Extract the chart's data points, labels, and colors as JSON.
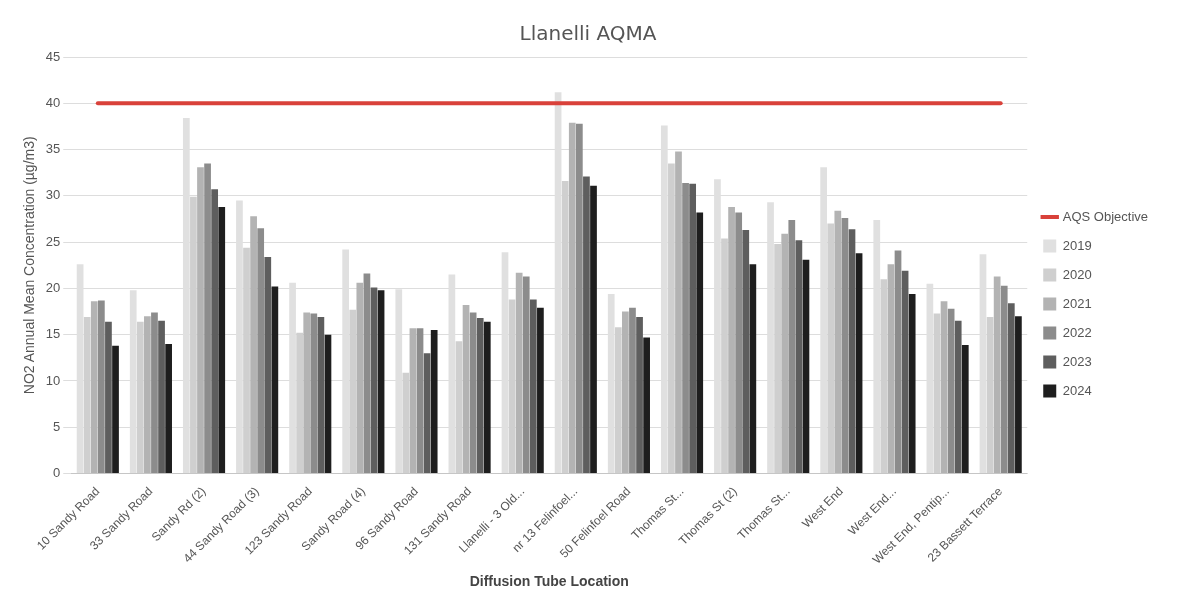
{
  "chart_data": {
    "type": "bar",
    "title": "Llanelli AQMA",
    "xlabel": "Diffusion Tube Location",
    "ylabel": "NO2 Annual Mean Concentration (µg/m3)",
    "categories": [
      "10 Sandy Road",
      "33 Sandy Road",
      "Sandy Rd (2)",
      "44 Sandy Road (3)",
      "123 Sandy Road",
      "Sandy Road (4)",
      "96 Sandy Road",
      "131 Sandy Road",
      "Llanelli - 3 Old...",
      "nr 13 Felinfoel...",
      "50 Felinfoel Road",
      "Thomas St...",
      "Thomas St (2)",
      "Thomas St...",
      "West End",
      "West End...",
      "West End, Pentip...",
      "23 Bassett Terrace"
    ],
    "series": [
      {
        "name": "2019",
        "color": "#e0e0e0",
        "values": [
          22.6,
          19.8,
          38.4,
          29.5,
          20.6,
          24.2,
          19.9,
          21.5,
          23.9,
          41.2,
          19.4,
          37.6,
          31.8,
          29.3,
          33.1,
          27.4,
          20.5,
          23.7
        ]
      },
      {
        "name": "2020",
        "color": "#cfcfcf",
        "values": [
          16.9,
          16.4,
          29.9,
          24.4,
          15.2,
          17.7,
          10.9,
          14.3,
          18.8,
          31.6,
          15.8,
          33.5,
          25.4,
          24.8,
          27.0,
          21.0,
          17.3,
          16.9
        ]
      },
      {
        "name": "2021",
        "color": "#b3b3b3",
        "values": [
          18.6,
          17.0,
          33.1,
          27.8,
          17.4,
          20.6,
          15.7,
          18.2,
          21.7,
          37.9,
          17.5,
          34.8,
          28.8,
          25.9,
          28.4,
          22.6,
          18.6,
          21.3
        ]
      },
      {
        "name": "2022",
        "color": "#8c8c8c",
        "values": [
          18.7,
          17.4,
          33.5,
          26.5,
          17.3,
          21.6,
          15.7,
          17.4,
          21.3,
          37.8,
          17.9,
          31.4,
          28.2,
          27.4,
          27.6,
          24.1,
          17.8,
          20.3
        ]
      },
      {
        "name": "2023",
        "color": "#5e5e5e",
        "values": [
          16.4,
          16.5,
          30.7,
          23.4,
          16.9,
          20.1,
          13.0,
          16.8,
          18.8,
          32.1,
          16.9,
          31.3,
          26.3,
          25.2,
          26.4,
          21.9,
          16.5,
          18.4
        ]
      },
      {
        "name": "2024",
        "color": "#1e1e1e",
        "values": [
          13.8,
          14.0,
          28.8,
          20.2,
          15.0,
          19.8,
          15.5,
          16.4,
          17.9,
          31.1,
          14.7,
          28.2,
          22.6,
          23.1,
          23.8,
          19.4,
          13.9,
          17.0
        ]
      },
      {
        "name": "AQS Objective",
        "color": "#d9413a",
        "type": "line",
        "values": [
          40,
          40,
          40,
          40,
          40,
          40,
          40,
          40,
          40,
          40,
          40,
          40,
          40,
          40,
          40,
          40,
          40,
          40
        ]
      }
    ],
    "ylim": [
      0,
      45
    ],
    "yticks": [
      0,
      5,
      10,
      15,
      20,
      25,
      30,
      35,
      40,
      45
    ],
    "grid": "y",
    "legend": "right",
    "marker": "none"
  }
}
